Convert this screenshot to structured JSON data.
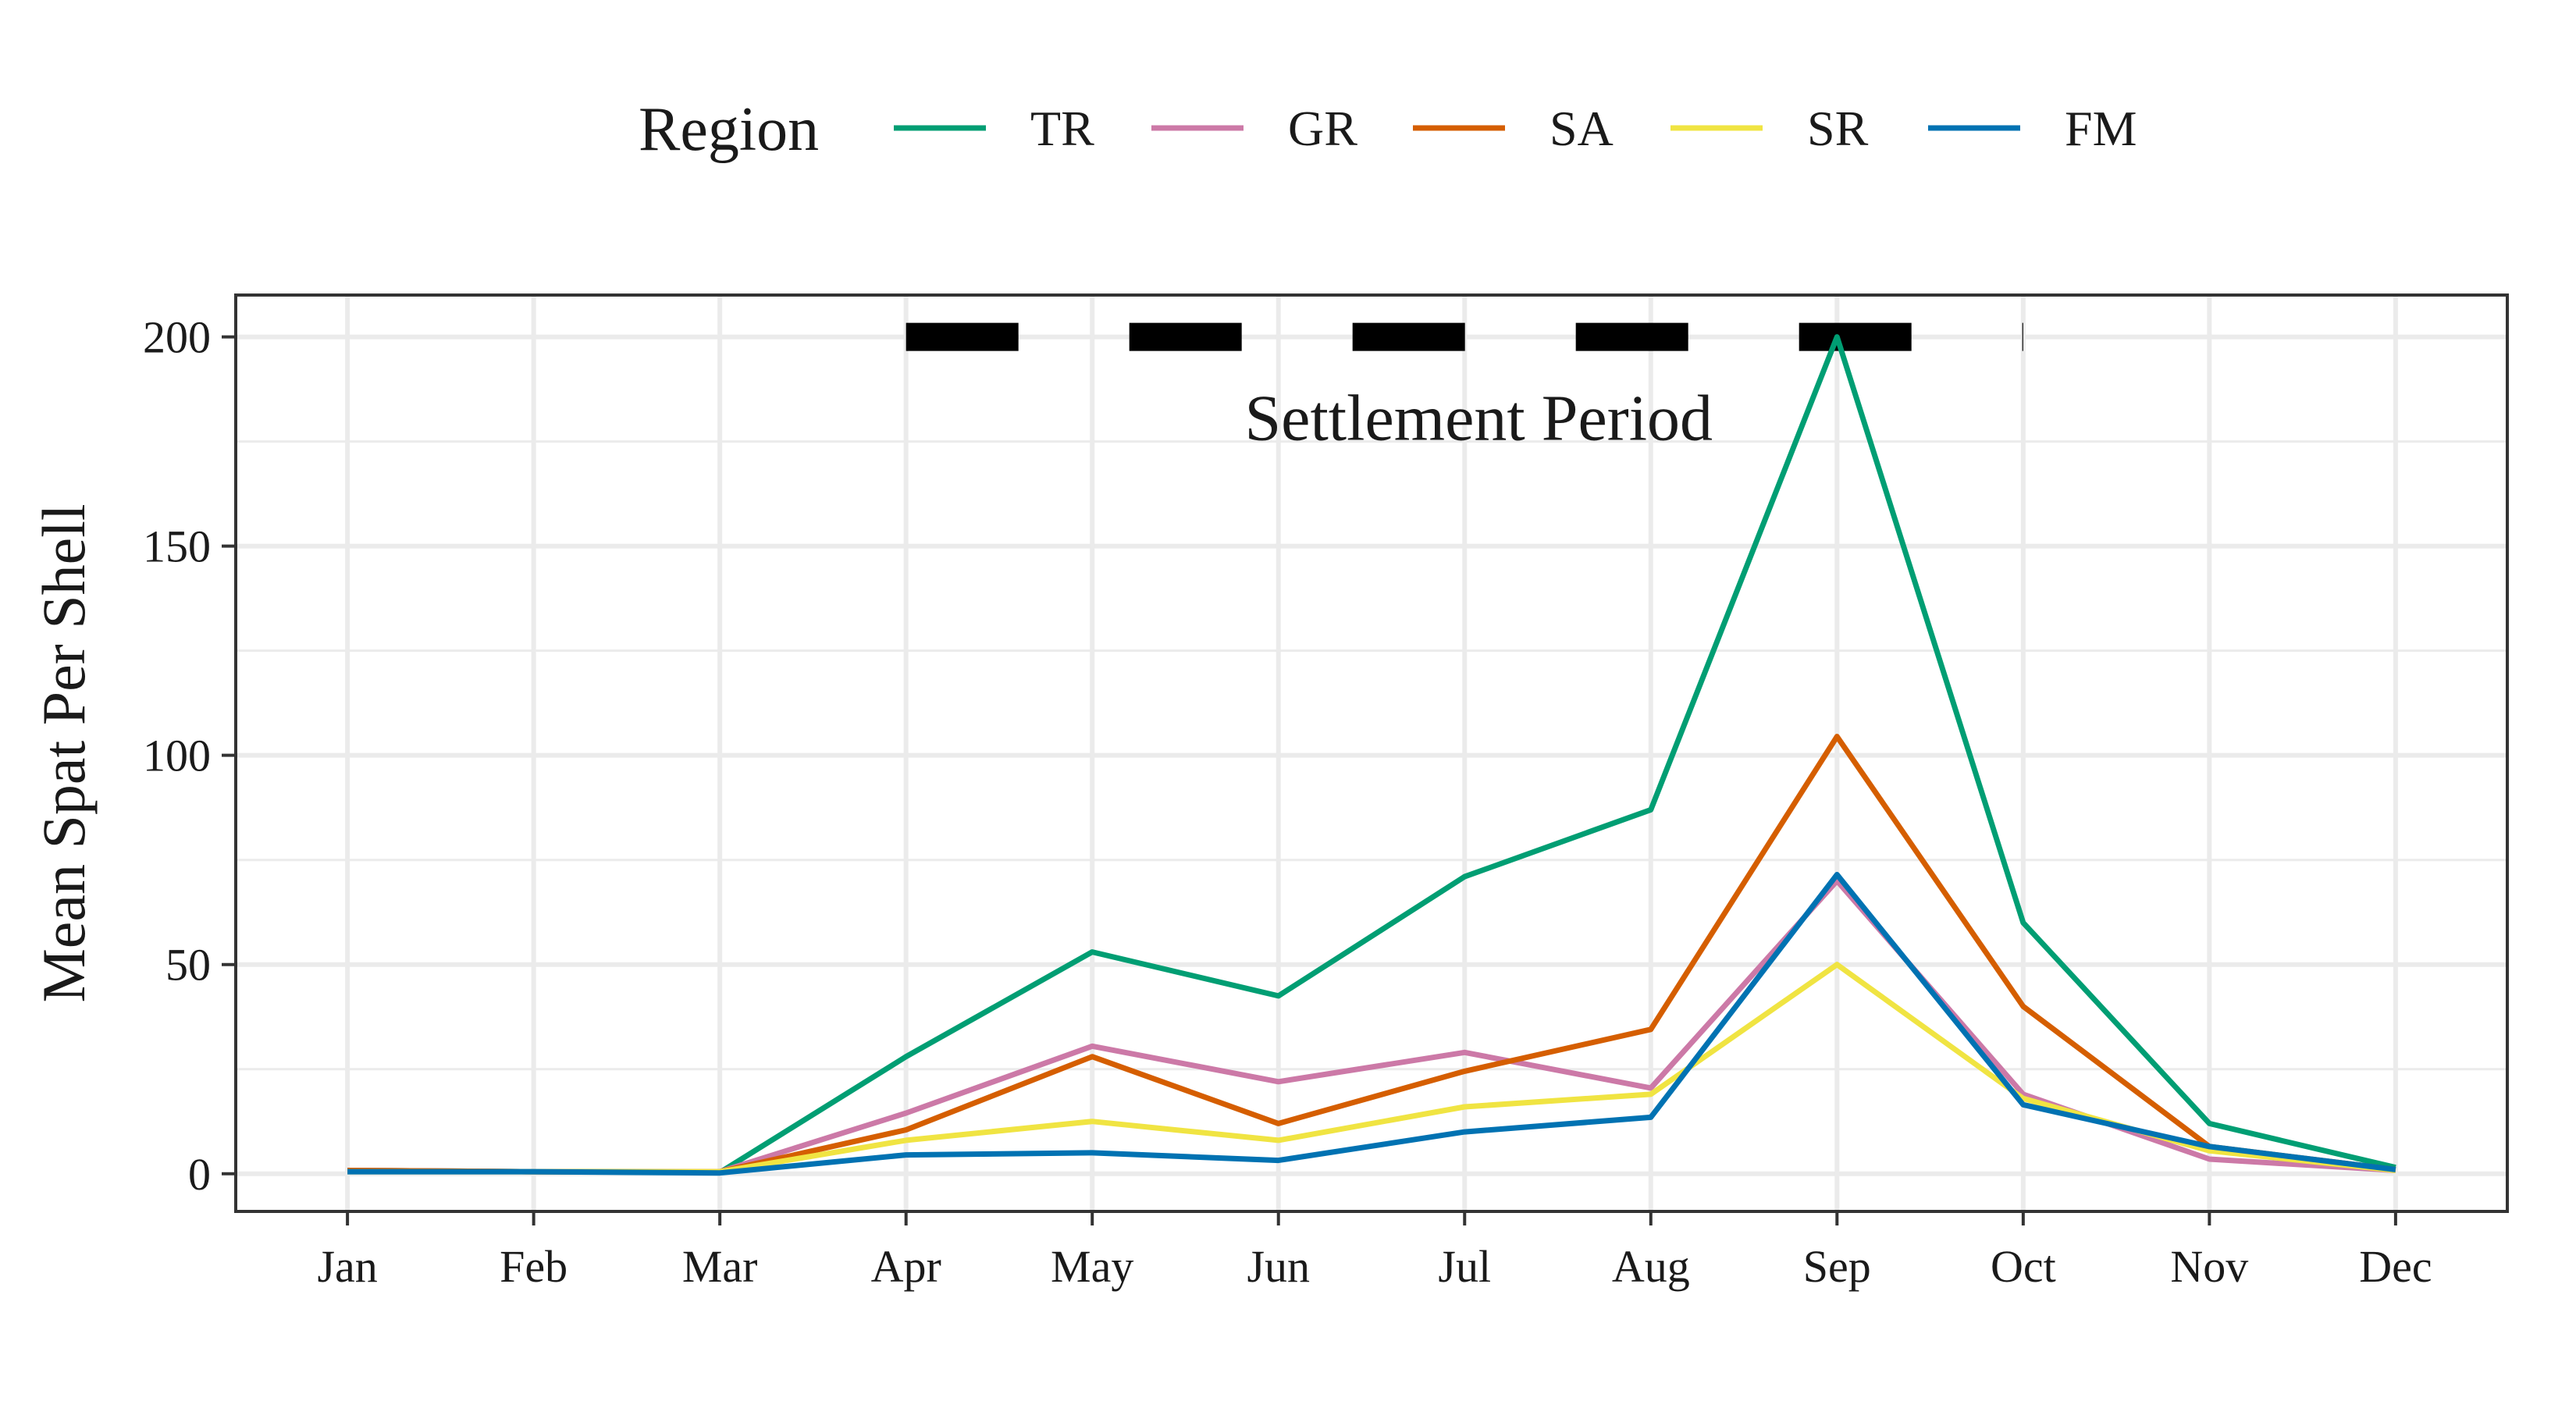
{
  "legend": {
    "title": "Region",
    "placement": "top"
  },
  "annotation": {
    "text": "Settlement Period",
    "style": "dashed horizontal bar at y=200 spanning Apr to Oct",
    "y_value": 200,
    "x_start": "Apr",
    "x_end": "Oct"
  },
  "colors": {
    "TR": "#009E73",
    "GR": "#CC79A7",
    "SA": "#D55E00",
    "SR": "#F0E442",
    "FM": "#0072B2",
    "annotation": "#000000",
    "grid": "#ebebeb",
    "panel_border": "#333333"
  },
  "chart_data": {
    "type": "line",
    "title": "",
    "xlabel": "",
    "ylabel": "Mean Spat Per Shell",
    "categories": [
      "Jan",
      "Feb",
      "Mar",
      "Apr",
      "May",
      "Jun",
      "Jul",
      "Aug",
      "Sep",
      "Oct",
      "Nov",
      "Dec"
    ],
    "ylim": [
      -9,
      210
    ],
    "yticks": [
      0,
      50,
      100,
      150,
      200
    ],
    "grid": true,
    "series": [
      {
        "name": "TR",
        "values": [
          0.8,
          0.5,
          0.3,
          28,
          53,
          42.5,
          71,
          87,
          200,
          60,
          12,
          1.5
        ]
      },
      {
        "name": "GR",
        "values": [
          0.8,
          0.5,
          0.5,
          14.5,
          30.5,
          22,
          29,
          20.5,
          70,
          19,
          3.5,
          0.8
        ]
      },
      {
        "name": "SA",
        "values": [
          0.8,
          0.5,
          0.5,
          10.5,
          28,
          12,
          24.5,
          34.5,
          104.5,
          40,
          6.5,
          1
        ]
      },
      {
        "name": "SR",
        "values": [
          0.5,
          0.5,
          0.5,
          8,
          12.5,
          8,
          16,
          19,
          50,
          18,
          5.5,
          0.8
        ]
      },
      {
        "name": "FM",
        "values": [
          0.5,
          0.5,
          0.2,
          4.5,
          5,
          3.2,
          10,
          13.5,
          71.5,
          16.5,
          6.5,
          1
        ]
      }
    ]
  }
}
